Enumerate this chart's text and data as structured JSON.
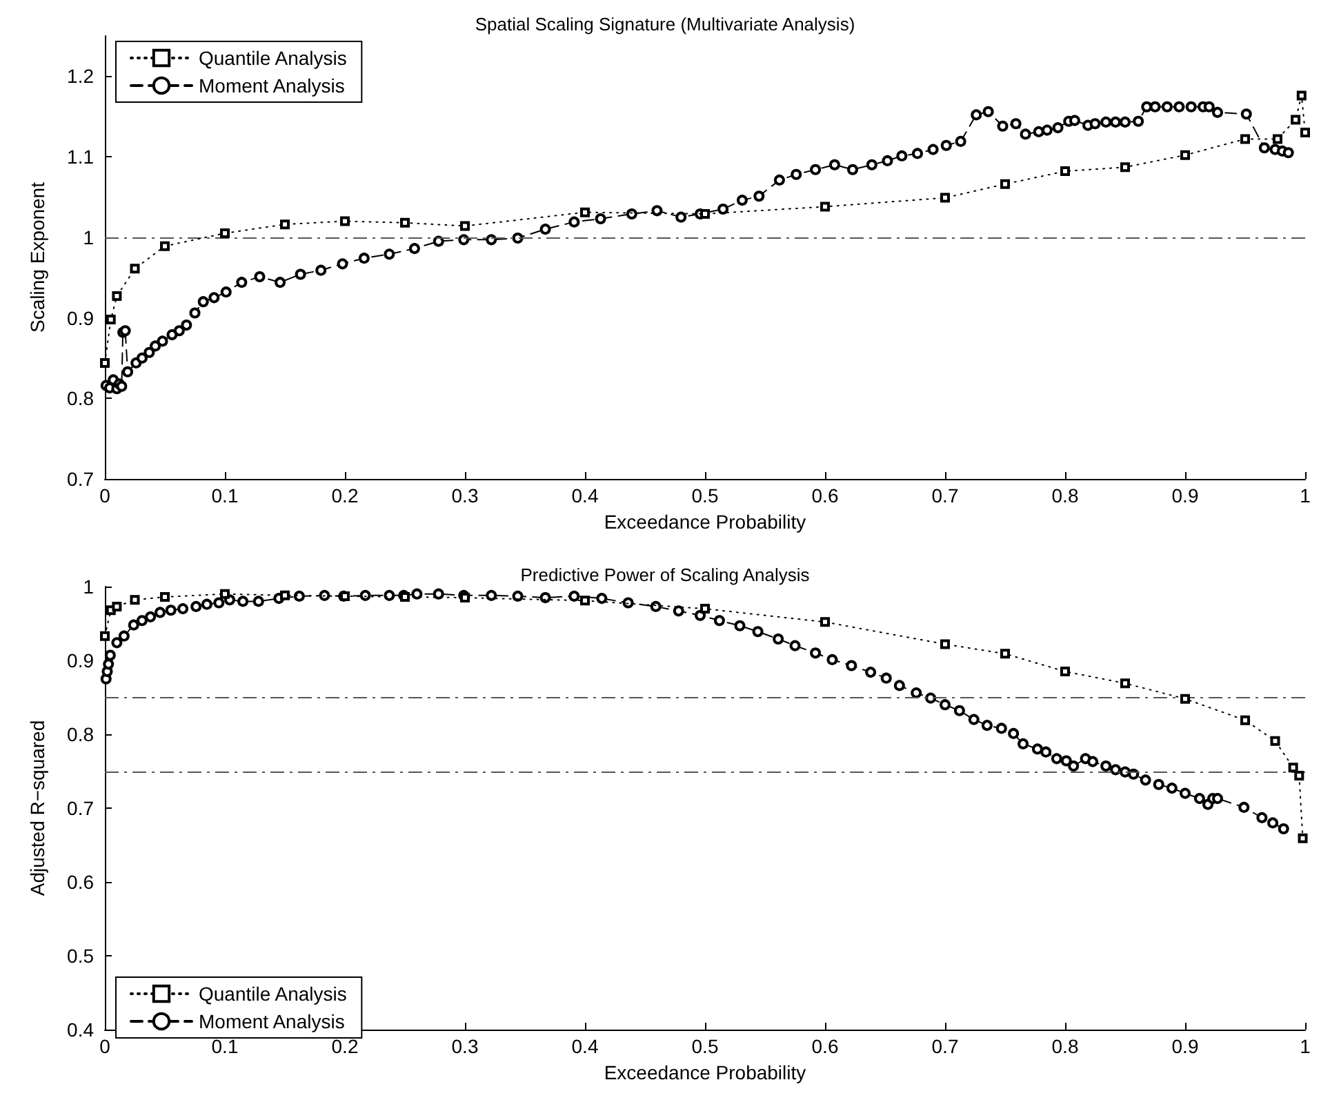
{
  "chart_data": [
    {
      "type": "line",
      "title": "Spatial Scaling Signature (Multivariate Analysis)",
      "xlabel": "Exceedance Probability",
      "ylabel": "Scaling Exponent",
      "xlim": [
        0,
        1
      ],
      "xticks": [
        0,
        0.1,
        0.2,
        0.3,
        0.4,
        0.5,
        0.6,
        0.7,
        0.8,
        0.9,
        1
      ],
      "ylim": [
        0.7,
        1.25
      ],
      "yticks": [
        0.7,
        0.8,
        0.9,
        1,
        1.1,
        1.2
      ],
      "grid": false,
      "legend": "top left",
      "ref_lines": [
        {
          "axis": "y",
          "value": 1,
          "color": "#555555",
          "line_style": "dashed"
        }
      ],
      "series": [
        {
          "name": "Quantile Analysis",
          "color": "#000000",
          "marker": "square",
          "line_style": "dotted",
          "x": [
            0,
            0.005,
            0.01,
            0.025,
            0.05,
            0.1,
            0.15,
            0.2,
            0.25,
            0.3,
            0.4,
            0.5,
            0.6,
            0.7,
            0.75,
            0.8,
            0.85,
            0.9,
            0.95,
            0.977,
            0.992,
            0.997,
            1
          ],
          "values": [
            0.844,
            0.898,
            0.927,
            0.961,
            0.989,
            1.005,
            1.016,
            1.02,
            1.018,
            1.014,
            1.031,
            1.029,
            1.038,
            1.049,
            1.066,
            1.082,
            1.087,
            1.102,
            1.122,
            1.122,
            1.146,
            1.176,
            1.13
          ]
        },
        {
          "name": "Moment Analysis",
          "color": "#000000",
          "marker": "circle",
          "line_style": "dashed",
          "x": [
            0.001,
            0.004,
            0.007,
            0.01,
            0.012,
            0.014,
            0.015,
            0.017,
            0.019,
            0.026,
            0.031,
            0.037,
            0.042,
            0.048,
            0.056,
            0.062,
            0.068,
            0.075,
            0.082,
            0.091,
            0.101,
            0.114,
            0.129,
            0.146,
            0.163,
            0.18,
            0.198,
            0.216,
            0.237,
            0.258,
            0.278,
            0.299,
            0.322,
            0.344,
            0.367,
            0.391,
            0.413,
            0.439,
            0.46,
            0.48,
            0.496,
            0.515,
            0.531,
            0.545,
            0.562,
            0.576,
            0.592,
            0.608,
            0.623,
            0.639,
            0.652,
            0.664,
            0.677,
            0.69,
            0.701,
            0.713,
            0.726,
            0.736,
            0.748,
            0.759,
            0.767,
            0.778,
            0.785,
            0.794,
            0.803,
            0.808,
            0.819,
            0.825,
            0.834,
            0.842,
            0.85,
            0.861,
            0.868,
            0.875,
            0.885,
            0.895,
            0.905,
            0.915,
            0.92,
            0.927,
            0.951,
            0.966,
            0.975,
            0.981,
            0.986
          ],
          "values": [
            0.816,
            0.813,
            0.823,
            0.812,
            0.818,
            0.815,
            0.882,
            0.884,
            0.833,
            0.844,
            0.85,
            0.857,
            0.865,
            0.871,
            0.879,
            0.884,
            0.891,
            0.906,
            0.92,
            0.925,
            0.932,
            0.944,
            0.951,
            0.944,
            0.954,
            0.959,
            0.967,
            0.974,
            0.979,
            0.986,
            0.995,
            0.997,
            0.997,
            0.999,
            1.01,
            1.019,
            1.023,
            1.029,
            1.033,
            1.025,
            1.029,
            1.035,
            1.046,
            1.051,
            1.071,
            1.078,
            1.084,
            1.09,
            1.084,
            1.09,
            1.095,
            1.101,
            1.104,
            1.109,
            1.114,
            1.119,
            1.152,
            1.156,
            1.138,
            1.141,
            1.128,
            1.131,
            1.133,
            1.136,
            1.144,
            1.145,
            1.139,
            1.141,
            1.143,
            1.143,
            1.143,
            1.144,
            1.162,
            1.162,
            1.162,
            1.162,
            1.162,
            1.162,
            1.162,
            1.155,
            1.153,
            1.111,
            1.109,
            1.107,
            1.105
          ]
        }
      ]
    },
    {
      "type": "line",
      "title": "Predictive Power of Scaling Analysis",
      "xlabel": "Exceedance Probability",
      "ylabel": "Adjusted R−squared",
      "xlim": [
        0,
        1
      ],
      "xticks": [
        0,
        0.1,
        0.2,
        0.3,
        0.4,
        0.5,
        0.6,
        0.7,
        0.8,
        0.9,
        1
      ],
      "ylim": [
        0.4,
        1
      ],
      "yticks": [
        0.4,
        0.5,
        0.6,
        0.7,
        0.8,
        0.9,
        1
      ],
      "grid": false,
      "legend": "bottom left",
      "ref_lines": [
        {
          "axis": "y",
          "value": 0.85,
          "color": "#555555",
          "line_style": "dashed"
        },
        {
          "axis": "y",
          "value": 0.75,
          "color": "#555555",
          "line_style": "dashed"
        }
      ],
      "series": [
        {
          "name": "Quantile Analysis",
          "color": "#000000",
          "marker": "square",
          "line_style": "dotted",
          "x": [
            0,
            0.005,
            0.01,
            0.025,
            0.05,
            0.1,
            0.15,
            0.2,
            0.25,
            0.3,
            0.4,
            0.5,
            0.6,
            0.7,
            0.75,
            0.8,
            0.85,
            0.9,
            0.95,
            0.975,
            0.99,
            0.995,
            0.998
          ],
          "values": [
            0.933,
            0.968,
            0.973,
            0.982,
            0.986,
            0.99,
            0.988,
            0.987,
            0.986,
            0.985,
            0.981,
            0.97,
            0.952,
            0.922,
            0.909,
            0.885,
            0.869,
            0.848,
            0.819,
            0.791,
            0.755,
            0.744,
            0.659
          ]
        },
        {
          "name": "Moment Analysis",
          "color": "#000000",
          "marker": "circle",
          "line_style": "dashed",
          "x": [
            0.001,
            0.002,
            0.003,
            0.0045,
            0.01,
            0.016,
            0.024,
            0.031,
            0.038,
            0.046,
            0.055,
            0.065,
            0.076,
            0.085,
            0.095,
            0.104,
            0.115,
            0.128,
            0.145,
            0.162,
            0.183,
            0.199,
            0.217,
            0.237,
            0.249,
            0.26,
            0.278,
            0.299,
            0.322,
            0.344,
            0.367,
            0.391,
            0.414,
            0.436,
            0.459,
            0.478,
            0.496,
            0.512,
            0.529,
            0.544,
            0.561,
            0.575,
            0.592,
            0.606,
            0.622,
            0.638,
            0.651,
            0.662,
            0.676,
            0.688,
            0.7,
            0.712,
            0.724,
            0.735,
            0.747,
            0.757,
            0.765,
            0.777,
            0.784,
            0.793,
            0.801,
            0.807,
            0.817,
            0.823,
            0.834,
            0.842,
            0.85,
            0.857,
            0.867,
            0.878,
            0.889,
            0.9,
            0.912,
            0.919,
            0.923,
            0.927,
            0.949,
            0.964,
            0.973,
            0.982
          ],
          "values": [
            0.875,
            0.885,
            0.895,
            0.907,
            0.924,
            0.933,
            0.948,
            0.954,
            0.959,
            0.965,
            0.968,
            0.97,
            0.973,
            0.976,
            0.978,
            0.982,
            0.98,
            0.98,
            0.984,
            0.987,
            0.988,
            0.987,
            0.988,
            0.988,
            0.988,
            0.99,
            0.99,
            0.988,
            0.988,
            0.987,
            0.985,
            0.987,
            0.984,
            0.978,
            0.973,
            0.967,
            0.961,
            0.954,
            0.947,
            0.939,
            0.929,
            0.92,
            0.91,
            0.901,
            0.893,
            0.884,
            0.876,
            0.866,
            0.856,
            0.849,
            0.84,
            0.832,
            0.82,
            0.812,
            0.808,
            0.801,
            0.787,
            0.78,
            0.776,
            0.767,
            0.764,
            0.757,
            0.767,
            0.763,
            0.757,
            0.752,
            0.749,
            0.746,
            0.738,
            0.732,
            0.727,
            0.72,
            0.713,
            0.705,
            0.713,
            0.713,
            0.701,
            0.687,
            0.68,
            0.672
          ]
        }
      ]
    }
  ]
}
